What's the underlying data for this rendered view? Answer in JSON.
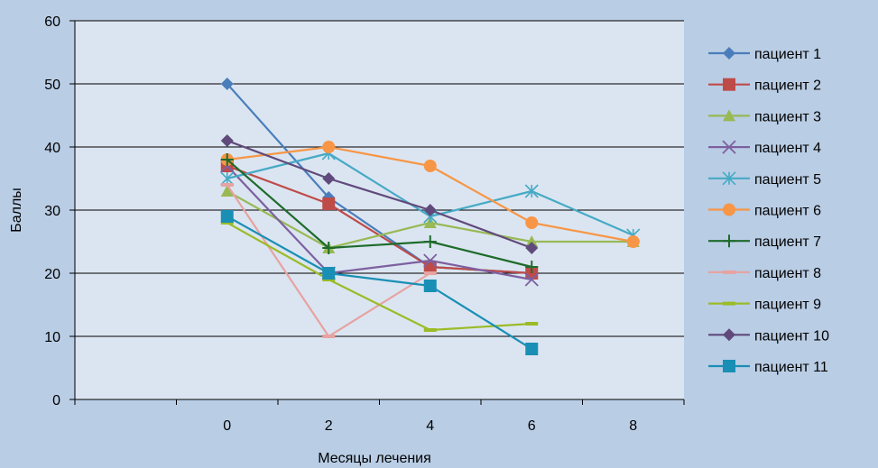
{
  "chart_data": {
    "type": "line",
    "title": "",
    "xlabel": "Месяцы лечения",
    "ylabel": "Баллы",
    "x_ticks": [
      0,
      2,
      4,
      6,
      8
    ],
    "y_ticks": [
      0,
      10,
      20,
      30,
      40,
      50,
      60
    ],
    "xlim": [
      -2,
      10
    ],
    "ylim": [
      0,
      60
    ],
    "grid": "horizontal",
    "legend_position": "right",
    "colors": {
      "background": "#b9cde5",
      "plot_area": "#dbe5f1",
      "gridline": "#000000"
    },
    "series": [
      {
        "name": "пациент 1",
        "color": "#4a7ebb",
        "marker": "diamond",
        "points": [
          [
            0,
            50
          ],
          [
            2,
            32
          ],
          [
            4,
            21
          ],
          [
            6,
            20
          ]
        ]
      },
      {
        "name": "пациент 2",
        "color": "#be4b48",
        "marker": "square",
        "points": [
          [
            0,
            37
          ],
          [
            2,
            31
          ],
          [
            4,
            21
          ],
          [
            6,
            20
          ]
        ]
      },
      {
        "name": "пациент 3",
        "color": "#98b954",
        "marker": "triangle",
        "points": [
          [
            0,
            33
          ],
          [
            2,
            24
          ],
          [
            4,
            28
          ],
          [
            6,
            25
          ],
          [
            8,
            25
          ]
        ]
      },
      {
        "name": "пациент 4",
        "color": "#7d60a0",
        "marker": "x",
        "points": [
          [
            0,
            37
          ],
          [
            2,
            20
          ],
          [
            4,
            22
          ],
          [
            6,
            19
          ]
        ]
      },
      {
        "name": "пациент 5",
        "color": "#46aac5",
        "marker": "star",
        "points": [
          [
            0,
            35
          ],
          [
            2,
            39
          ],
          [
            4,
            29
          ],
          [
            6,
            33
          ],
          [
            8,
            26
          ]
        ]
      },
      {
        "name": "пациент 6",
        "color": "#f79646",
        "marker": "circle",
        "points": [
          [
            0,
            38
          ],
          [
            2,
            40
          ],
          [
            4,
            37
          ],
          [
            6,
            28
          ],
          [
            8,
            25
          ]
        ]
      },
      {
        "name": "пациент 7",
        "color": "#1e6b2b",
        "marker": "plus",
        "points": [
          [
            0,
            38
          ],
          [
            2,
            24
          ],
          [
            4,
            25
          ],
          [
            6,
            21
          ]
        ]
      },
      {
        "name": "пациент 8",
        "color": "#e6a3a1",
        "marker": "dash",
        "points": [
          [
            0,
            34
          ],
          [
            2,
            10
          ],
          [
            4,
            20
          ]
        ]
      },
      {
        "name": "пациент 9",
        "color": "#9bbb27",
        "marker": "dash",
        "points": [
          [
            0,
            28
          ],
          [
            2,
            19
          ],
          [
            4,
            11
          ],
          [
            6,
            12
          ]
        ]
      },
      {
        "name": "пациент 10",
        "color": "#604a7b",
        "marker": "diamond",
        "points": [
          [
            0,
            41
          ],
          [
            2,
            35
          ],
          [
            4,
            30
          ],
          [
            6,
            24
          ]
        ]
      },
      {
        "name": "пациент 11",
        "color": "#1a8fb5",
        "marker": "square",
        "points": [
          [
            0,
            29
          ],
          [
            2,
            20
          ],
          [
            4,
            18
          ],
          [
            6,
            8
          ]
        ]
      }
    ]
  }
}
